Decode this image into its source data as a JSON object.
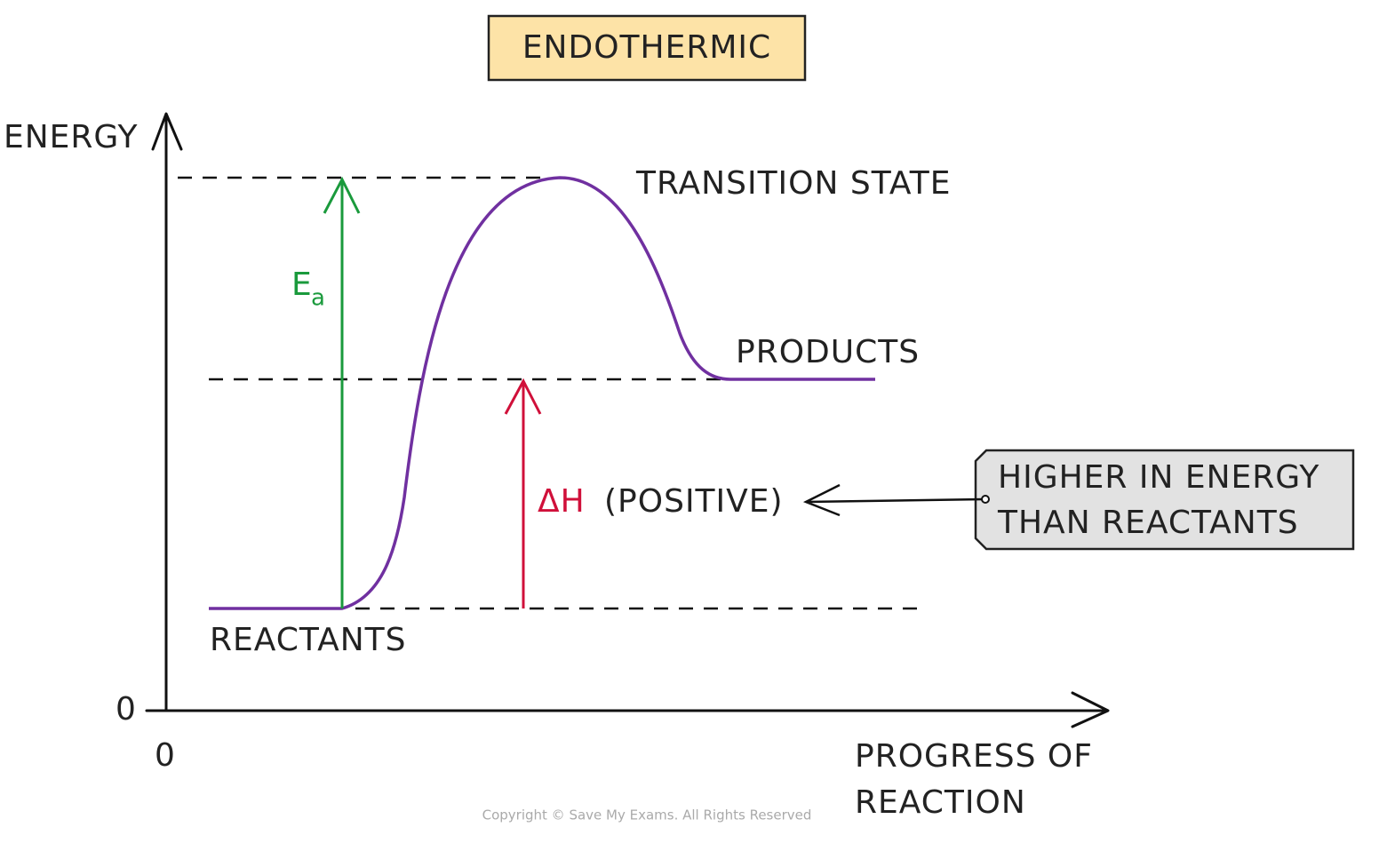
{
  "title": "ENDOTHERMIC",
  "axes": {
    "y_label": "ENERGY",
    "y_origin": "0",
    "x_origin": "0",
    "x_label": [
      "PROGRESS OF",
      "REACTION"
    ]
  },
  "labels": {
    "transition_state": "TRANSITION STATE",
    "products": "PRODUCTS",
    "reactants": "REACTANTS",
    "activation_energy": {
      "symbol": "E",
      "subscript": "a"
    },
    "enthalpy": {
      "symbol": "ΔH",
      "note": "(POSITIVE)"
    }
  },
  "callout": {
    "lines": [
      "HIGHER IN ENERGY",
      "THAN REACTANTS"
    ]
  },
  "copyright": "Copyright © Save My Exams. All Rights Reserved"
}
